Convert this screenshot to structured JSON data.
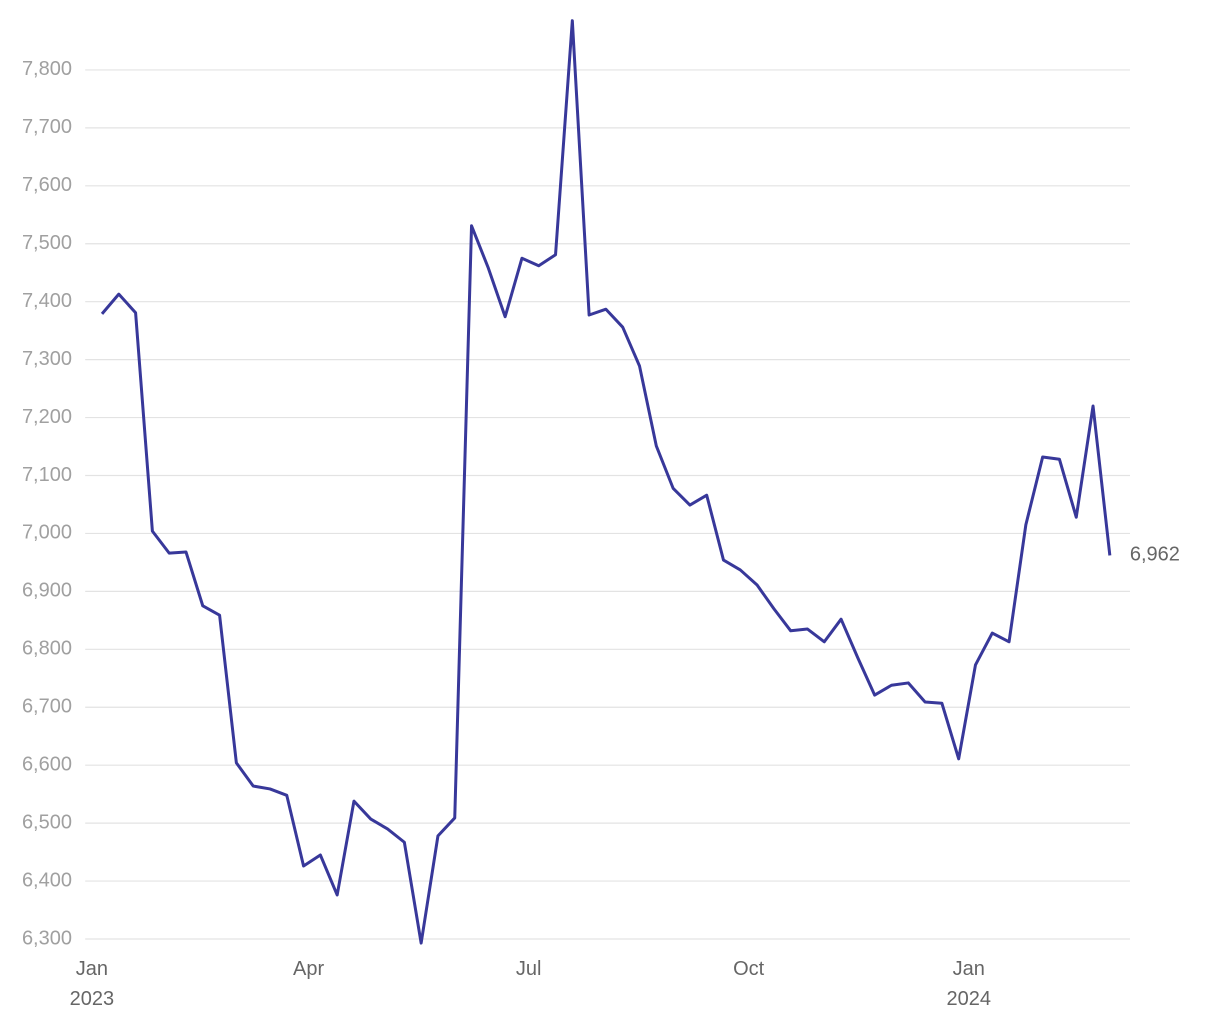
{
  "chart_data": {
    "type": "line",
    "color": "#38389a",
    "grid": true,
    "values": [
      7379,
      7413,
      7381,
      7004,
      6966,
      6968,
      6875,
      6859,
      6604,
      6564,
      6559,
      6548,
      6426,
      6445,
      6376,
      6538,
      6507,
      6490,
      6467,
      6293,
      6478,
      6509,
      7531,
      7458,
      7374,
      7475,
      7462,
      7481,
      7885,
      7377,
      7387,
      7356,
      7289,
      7151,
      7078,
      7049,
      7066,
      6954,
      6937,
      6911,
      6870,
      6832,
      6835,
      6813,
      6852,
      6785,
      6721,
      6738,
      6742,
      6709,
      6707,
      6611,
      6773,
      6828,
      6813,
      7015,
      7132,
      7128,
      7028,
      7220,
      6962
    ],
    "value_labels": [
      null,
      null,
      null,
      null,
      null,
      null,
      null,
      null,
      null,
      null,
      null,
      null,
      null,
      null,
      null,
      null,
      null,
      null,
      null,
      null,
      null,
      null,
      null,
      null,
      null,
      null,
      null,
      null,
      null,
      null,
      null,
      null,
      null,
      null,
      null,
      null,
      null,
      null,
      null,
      null,
      null,
      null,
      null,
      null,
      null,
      null,
      null,
      null,
      null,
      null,
      null,
      null,
      null,
      null,
      null,
      null,
      null,
      null,
      null,
      null,
      "6,962"
    ],
    "xlim": [
      -1,
      61.2
    ],
    "xticks": [
      {
        "value": -0.6,
        "label": "Jan\n2023"
      },
      {
        "value": 12.3,
        "label": "Apr"
      },
      {
        "value": 25.4,
        "label": "Jul"
      },
      {
        "value": 38.5,
        "label": "Oct"
      },
      {
        "value": 51.6,
        "label": "Jan\n2024"
      }
    ],
    "ylim": [
      6280,
      7900
    ],
    "yticks": [
      {
        "value": 6300,
        "label": "6,300"
      },
      {
        "value": 6400,
        "label": "6,400"
      },
      {
        "value": 6500,
        "label": "6,500"
      },
      {
        "value": 6600,
        "label": "6,600"
      },
      {
        "value": 6700,
        "label": "6,700"
      },
      {
        "value": 6800,
        "label": "6,800"
      },
      {
        "value": 6900,
        "label": "6,900"
      },
      {
        "value": 7000,
        "label": "7,000"
      },
      {
        "value": 7100,
        "label": "7,100"
      },
      {
        "value": 7200,
        "label": "7,200"
      },
      {
        "value": 7300,
        "label": "7,300"
      },
      {
        "value": 7400,
        "label": "7,400"
      },
      {
        "value": 7500,
        "label": "7,500"
      },
      {
        "value": 7600,
        "label": "7,600"
      },
      {
        "value": 7700,
        "label": "7,700"
      },
      {
        "value": 7800,
        "label": "7,800"
      }
    ]
  }
}
